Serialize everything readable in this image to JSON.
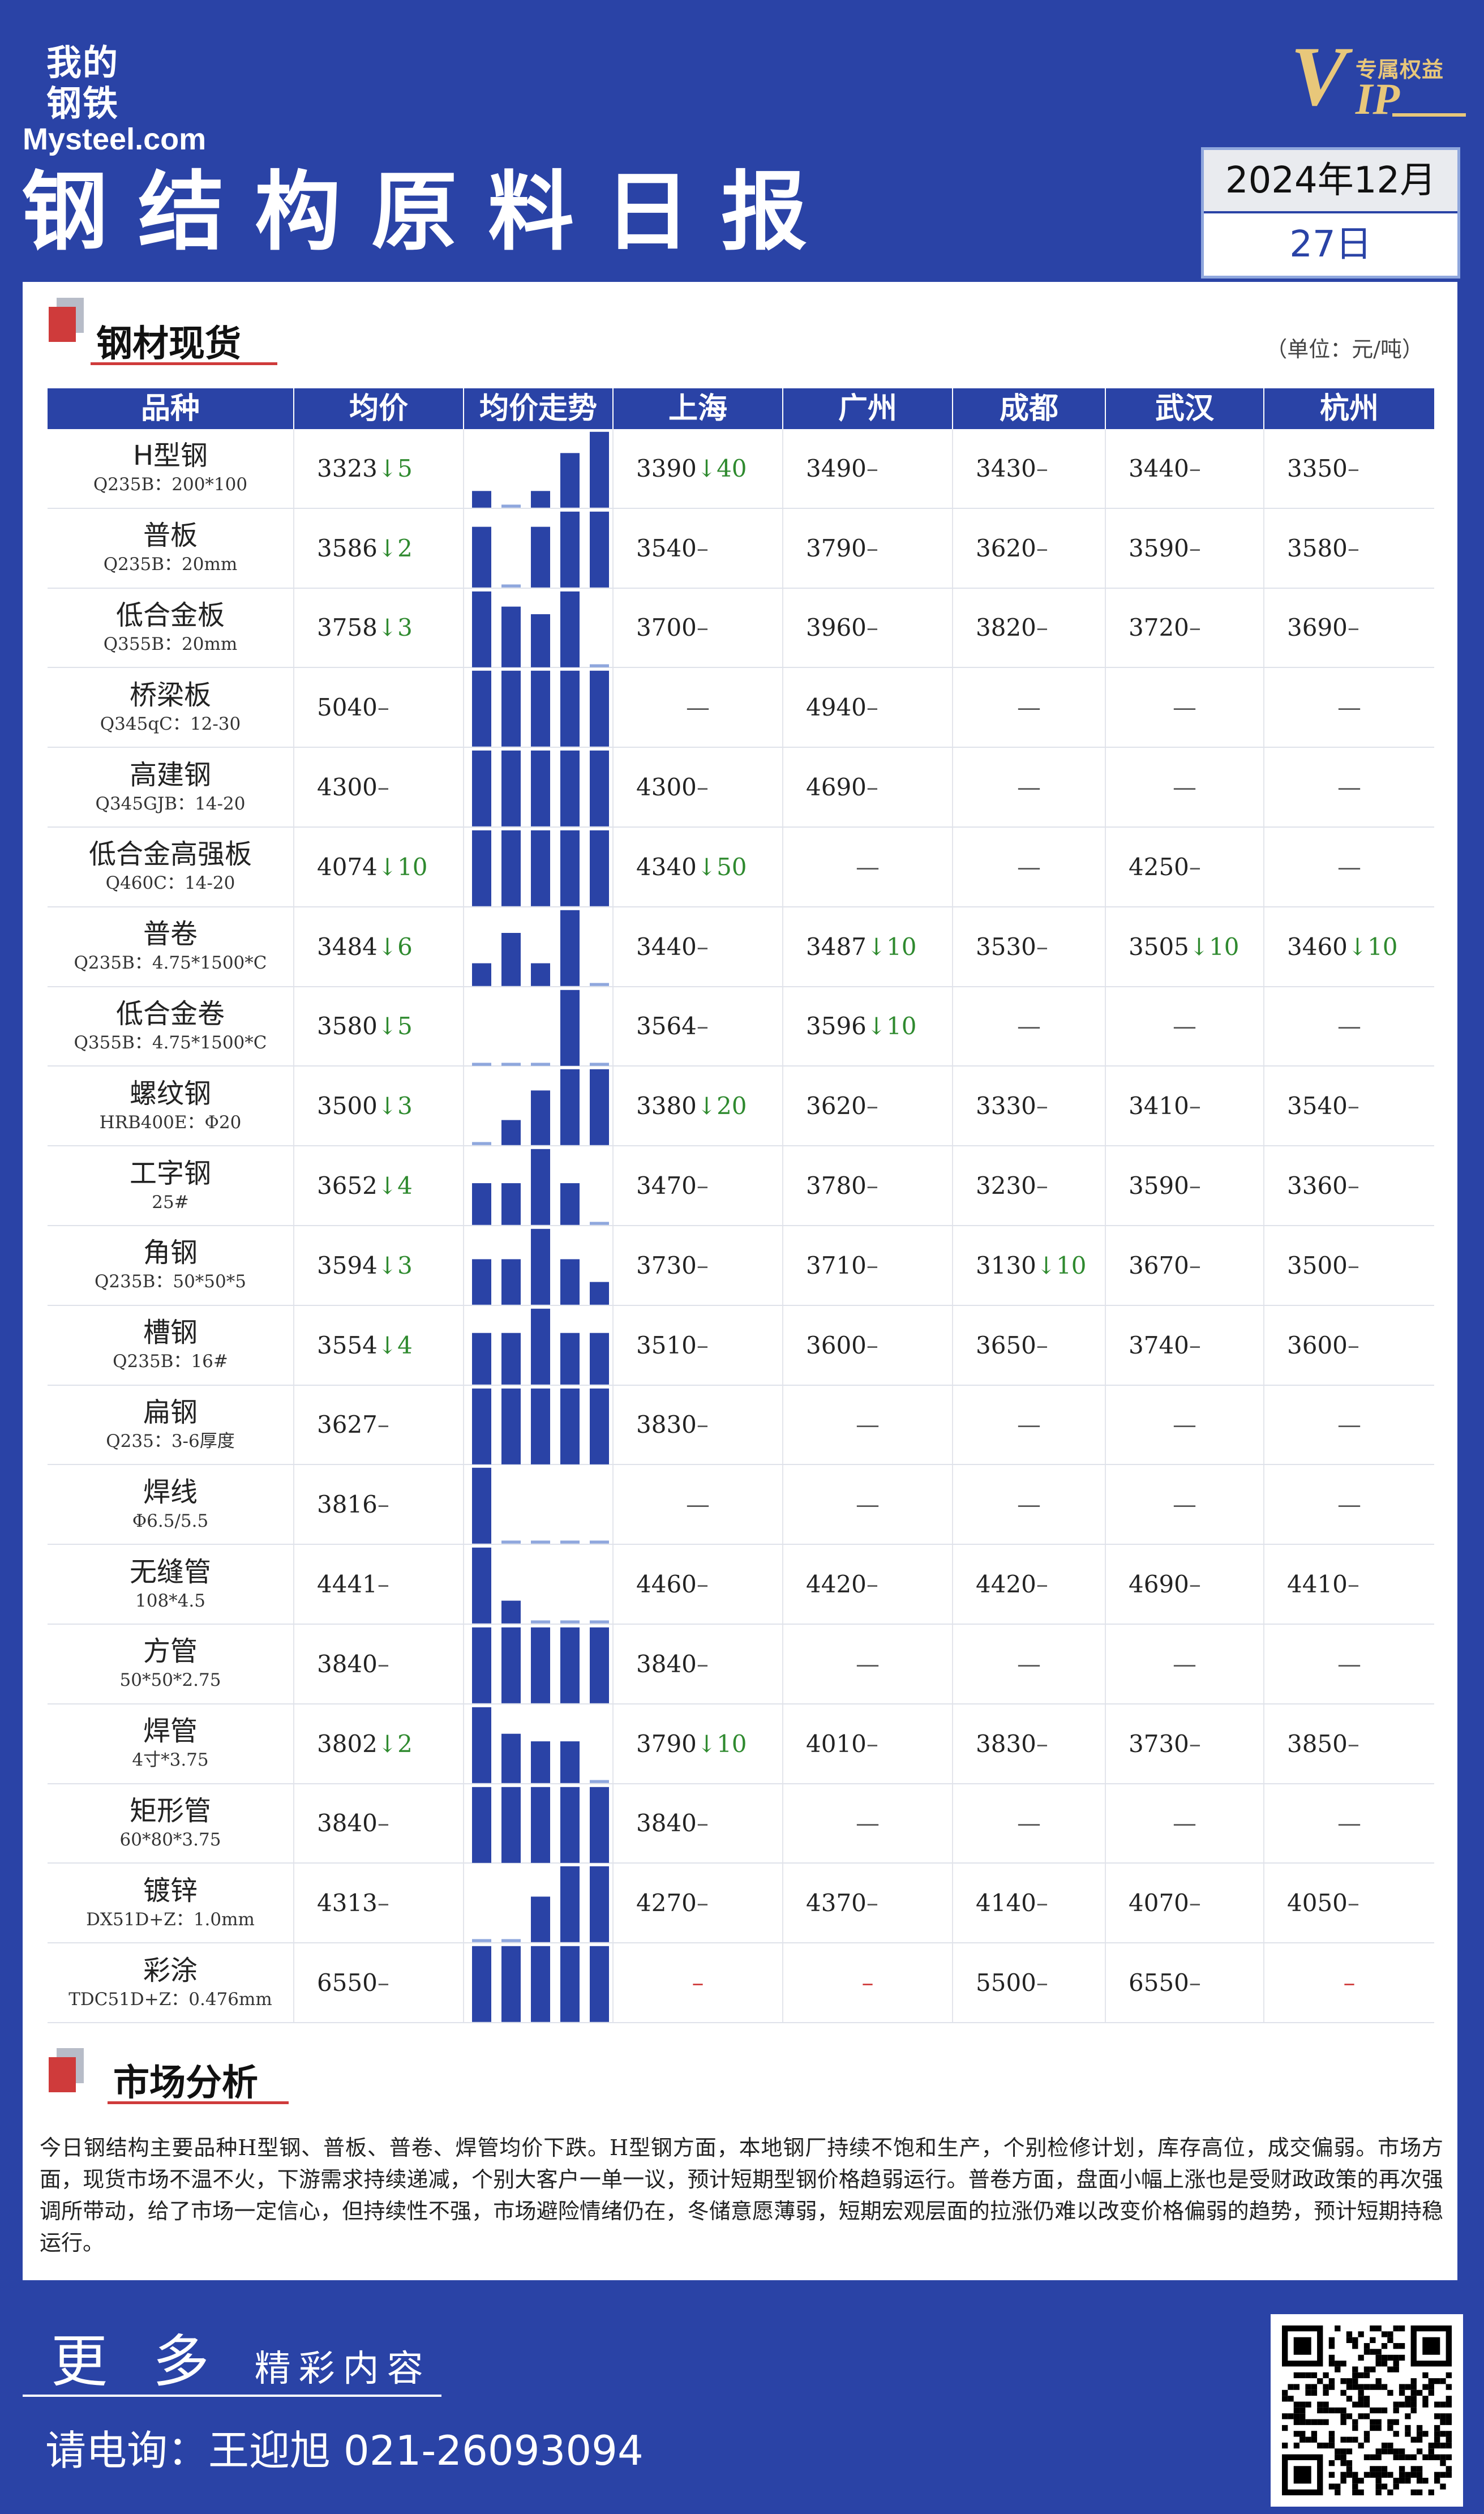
{
  "header": {
    "logo_cn_line1": "我的",
    "logo_cn_line2": "钢铁",
    "logo_en": "Mysteel.com",
    "vip_letter_v": "V",
    "vip_letters_ip": "IP",
    "vip_tag": "专属权益",
    "title": "钢结构原料日报",
    "date_year_month": "2024年12月",
    "date_day": "27日"
  },
  "section_spot": {
    "title": "钢材现货",
    "unit": "（单位：元/吨）"
  },
  "table": {
    "columns": [
      "品种",
      "均价",
      "均价走势",
      "上海",
      "广州",
      "成都",
      "武汉",
      "杭州"
    ],
    "rows": [
      {
        "name": "H型钢",
        "spec": "Q235B：200*100",
        "avg": "3323",
        "avg_chg": "↓5",
        "trend": [
          0.22,
          0.04,
          0.22,
          0.72,
          1.0
        ],
        "prices": [
          [
            "3390",
            "↓40"
          ],
          [
            "3490",
            "–"
          ],
          [
            "3430",
            "–"
          ],
          [
            "3440",
            "–"
          ],
          [
            "3350",
            "–"
          ]
        ]
      },
      {
        "name": "普板",
        "spec": "Q235B：20mm",
        "avg": "3586",
        "avg_chg": "↓2",
        "trend": [
          0.8,
          0.04,
          0.8,
          1.0,
          1.0
        ],
        "prices": [
          [
            "3540",
            "–"
          ],
          [
            "3790",
            "–"
          ],
          [
            "3620",
            "–"
          ],
          [
            "3590",
            "–"
          ],
          [
            "3580",
            "–"
          ]
        ]
      },
      {
        "name": "低合金板",
        "spec": "Q355B：20mm",
        "avg": "3758",
        "avg_chg": "↓3",
        "trend": [
          1.0,
          0.8,
          0.7,
          1.0,
          0.04
        ],
        "prices": [
          [
            "3700",
            "–"
          ],
          [
            "3960",
            "–"
          ],
          [
            "3820",
            "–"
          ],
          [
            "3720",
            "–"
          ],
          [
            "3690",
            "–"
          ]
        ]
      },
      {
        "name": "桥梁板",
        "spec": "Q345qC：12-30",
        "avg": "5040",
        "avg_chg": "–",
        "trend": [
          1.0,
          1.0,
          1.0,
          1.0,
          1.0
        ],
        "prices": [
          [
            "—",
            ""
          ],
          [
            "4940",
            "–"
          ],
          [
            "—",
            ""
          ],
          [
            "—",
            ""
          ],
          [
            "—",
            ""
          ]
        ]
      },
      {
        "name": "高建钢",
        "spec": "Q345GJB：14-20",
        "avg": "4300",
        "avg_chg": "–",
        "trend": [
          1.0,
          1.0,
          1.0,
          1.0,
          1.0
        ],
        "prices": [
          [
            "4300",
            "–"
          ],
          [
            "4690",
            "–"
          ],
          [
            "—",
            ""
          ],
          [
            "—",
            ""
          ],
          [
            "—",
            ""
          ]
        ]
      },
      {
        "name": "低合金高强板",
        "spec": "Q460C：14-20",
        "avg": "4074",
        "avg_chg": "↓10",
        "trend": [
          1.0,
          1.0,
          1.0,
          1.0,
          1.0
        ],
        "prices": [
          [
            "4340",
            "↓50"
          ],
          [
            "—",
            ""
          ],
          [
            "—",
            ""
          ],
          [
            "4250",
            "–"
          ],
          [
            "—",
            ""
          ]
        ]
      },
      {
        "name": "普卷",
        "spec": "Q235B：4.75*1500*C",
        "avg": "3484",
        "avg_chg": "↓6",
        "trend": [
          0.3,
          0.7,
          0.3,
          1.0,
          0.04
        ],
        "prices": [
          [
            "3440",
            "–"
          ],
          [
            "3487",
            "↓10"
          ],
          [
            "3530",
            "–"
          ],
          [
            "3505",
            "↓10"
          ],
          [
            "3460",
            "↓10"
          ]
        ]
      },
      {
        "name": "低合金卷",
        "spec": "Q355B：4.75*1500*C",
        "avg": "3580",
        "avg_chg": "↓5",
        "trend": [
          0.04,
          0.04,
          0.04,
          1.0,
          0.04
        ],
        "prices": [
          [
            "3564",
            "–"
          ],
          [
            "3596",
            "↓10"
          ],
          [
            "—",
            ""
          ],
          [
            "—",
            ""
          ],
          [
            "—",
            ""
          ]
        ]
      },
      {
        "name": "螺纹钢",
        "spec": "HRB400E：Φ20",
        "avg": "3500",
        "avg_chg": "↓3",
        "trend": [
          0.04,
          0.33,
          0.72,
          1.0,
          1.0
        ],
        "prices": [
          [
            "3380",
            "↓20"
          ],
          [
            "3620",
            "–"
          ],
          [
            "3330",
            "–"
          ],
          [
            "3410",
            "–"
          ],
          [
            "3540",
            "–"
          ]
        ]
      },
      {
        "name": "工字钢",
        "spec": "25#",
        "avg": "3652",
        "avg_chg": "↓4",
        "trend": [
          0.55,
          0.55,
          1.0,
          0.55,
          0.04
        ],
        "prices": [
          [
            "3470",
            "–"
          ],
          [
            "3780",
            "–"
          ],
          [
            "3230",
            "–"
          ],
          [
            "3590",
            "–"
          ],
          [
            "3360",
            "–"
          ]
        ]
      },
      {
        "name": "角钢",
        "spec": "Q235B：50*50*5",
        "avg": "3594",
        "avg_chg": "↓3",
        "trend": [
          0.6,
          0.6,
          1.0,
          0.6,
          0.3
        ],
        "prices": [
          [
            "3730",
            "–"
          ],
          [
            "3710",
            "–"
          ],
          [
            "3130",
            "↓10"
          ],
          [
            "3670",
            "–"
          ],
          [
            "3500",
            "–"
          ]
        ]
      },
      {
        "name": "槽钢",
        "spec": "Q235B：16#",
        "avg": "3554",
        "avg_chg": "↓4",
        "trend": [
          0.68,
          0.68,
          1.0,
          0.68,
          0.68
        ],
        "prices": [
          [
            "3510",
            "–"
          ],
          [
            "3600",
            "–"
          ],
          [
            "3650",
            "–"
          ],
          [
            "3740",
            "–"
          ],
          [
            "3600",
            "–"
          ]
        ]
      },
      {
        "name": "扁钢",
        "spec": "Q235：3-6厚度",
        "avg": "3627",
        "avg_chg": "–",
        "trend": [
          1.0,
          1.0,
          1.0,
          1.0,
          1.0
        ],
        "prices": [
          [
            "3830",
            "–"
          ],
          [
            "—",
            ""
          ],
          [
            "—",
            ""
          ],
          [
            "—",
            ""
          ],
          [
            "—",
            ""
          ]
        ]
      },
      {
        "name": "焊线",
        "spec": "Φ6.5/5.5",
        "avg": "3816",
        "avg_chg": "–",
        "trend": [
          1.0,
          0.04,
          0.04,
          0.04,
          0.04
        ],
        "prices": [
          [
            "—",
            ""
          ],
          [
            "—",
            ""
          ],
          [
            "—",
            ""
          ],
          [
            "—",
            ""
          ],
          [
            "—",
            ""
          ]
        ]
      },
      {
        "name": "无缝管",
        "spec": "108*4.5",
        "avg": "4441",
        "avg_chg": "–",
        "trend": [
          1.0,
          0.3,
          0.04,
          0.04,
          0.04
        ],
        "prices": [
          [
            "4460",
            "–"
          ],
          [
            "4420",
            "–"
          ],
          [
            "4420",
            "–"
          ],
          [
            "4690",
            "–"
          ],
          [
            "4410",
            "–"
          ]
        ]
      },
      {
        "name": "方管",
        "spec": "50*50*2.75",
        "avg": "3840",
        "avg_chg": "–",
        "trend": [
          1.0,
          1.0,
          1.0,
          1.0,
          1.0
        ],
        "prices": [
          [
            "3840",
            "–"
          ],
          [
            "—",
            ""
          ],
          [
            "—",
            ""
          ],
          [
            "—",
            ""
          ],
          [
            "—",
            ""
          ]
        ]
      },
      {
        "name": "焊管",
        "spec": "4寸*3.75",
        "avg": "3802",
        "avg_chg": "↓2",
        "trend": [
          1.0,
          0.65,
          0.55,
          0.55,
          0.04
        ],
        "prices": [
          [
            "3790",
            "↓10"
          ],
          [
            "4010",
            "–"
          ],
          [
            "3830",
            "–"
          ],
          [
            "3730",
            "–"
          ],
          [
            "3850",
            "–"
          ]
        ]
      },
      {
        "name": "矩形管",
        "spec": "60*80*3.75",
        "avg": "3840",
        "avg_chg": "–",
        "trend": [
          1.0,
          1.0,
          1.0,
          1.0,
          1.0
        ],
        "prices": [
          [
            "3840",
            "–"
          ],
          [
            "—",
            ""
          ],
          [
            "—",
            ""
          ],
          [
            "—",
            ""
          ],
          [
            "—",
            ""
          ]
        ]
      },
      {
        "name": "镀锌",
        "spec": "DX51D+Z：1.0mm",
        "avg": "4313",
        "avg_chg": "–",
        "trend": [
          0.04,
          0.04,
          0.6,
          1.0,
          1.0
        ],
        "prices": [
          [
            "4270",
            "–"
          ],
          [
            "4370",
            "–"
          ],
          [
            "4140",
            "–"
          ],
          [
            "4070",
            "–"
          ],
          [
            "4050",
            "–"
          ]
        ]
      },
      {
        "name": "彩涂",
        "spec": "TDC51D+Z：0.476mm",
        "avg": "6550",
        "avg_chg": "–",
        "trend": [
          1.0,
          1.0,
          1.0,
          1.0,
          1.0
        ],
        "prices": [
          [
            "–",
            ""
          ],
          [
            "–",
            ""
          ],
          [
            "5500",
            "–"
          ],
          [
            "6550",
            "–"
          ],
          [
            "–",
            ""
          ]
        ]
      }
    ]
  },
  "section_analysis": {
    "title": "市场分析",
    "text": "今日钢结构主要品种H型钢、普板、普卷、焊管均价下跌。H型钢方面，本地钢厂持续不饱和生产，个别检修计划，库存高位，成交偏弱。市场方面，现货市场不温不火，下游需求持续递减，个别大客户一单一议，预计短期型钢价格趋弱运行。普卷方面，盘面小幅上涨也是受财政政策的再次强调所带动，给了市场一定信心，但持续性不强，市场避险情绪仍在，冬储意愿薄弱，短期宏观层面的拉涨仍难以改变价格偏弱的趋势，预计短期持稳运行。"
  },
  "footer": {
    "more_big": "更 多",
    "more_small": "精彩内容",
    "phone": "请电询：王迎旭  021-26093094"
  },
  "colors": {
    "brand_blue": "#2a43a6",
    "accent_red": "#cf3b3b",
    "down_green": "#2f8a2f",
    "bar_blue": "#2a43a6"
  }
}
